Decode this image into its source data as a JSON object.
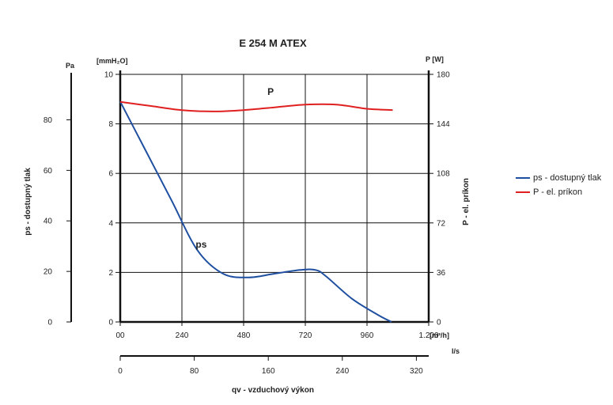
{
  "chart_data": {
    "type": "line",
    "title": "E 254 M ATEX",
    "x_primary": {
      "unit": "[m³/h]",
      "ticks": [
        "00",
        "240",
        "480",
        "720",
        "960",
        "1.200"
      ],
      "tick_values": [
        0,
        240,
        480,
        720,
        960,
        1200
      ],
      "range": [
        0,
        1200
      ]
    },
    "x_secondary": {
      "unit": "l/s",
      "label": "qv - vzduchový výkon",
      "ticks": [
        "0",
        "80",
        "160",
        "240",
        "320"
      ],
      "tick_values": [
        0,
        80,
        160,
        240,
        320
      ]
    },
    "y_left_mm": {
      "unit": "[mmH₂O]",
      "ticks": [
        "0",
        "2",
        "4",
        "6",
        "8",
        "10"
      ],
      "range": [
        0,
        10
      ]
    },
    "y_left_pa": {
      "unit": "Pa",
      "label": "ps - dostupný tlak",
      "ticks": [
        "0",
        "20",
        "40",
        "60",
        "80"
      ],
      "tick_values": [
        0,
        20,
        40,
        60,
        80
      ],
      "range": [
        0,
        98
      ]
    },
    "y_right": {
      "unit": "P [W]",
      "label": "P - el. príkon",
      "ticks": [
        "0",
        "36",
        "72",
        "108",
        "144",
        "180"
      ],
      "range": [
        0,
        180
      ]
    },
    "grid": true,
    "legend_position": "right",
    "series": [
      {
        "name": "ps - dostupný tlak",
        "color": "#1f4fa0",
        "axis": "left_mm",
        "curve_label": "ps",
        "x": [
          0,
          100,
          200,
          300,
          400,
          500,
          600,
          700,
          760,
          800,
          900,
          1000,
          1055
        ],
        "y": [
          8.9,
          6.9,
          4.9,
          2.9,
          1.95,
          1.8,
          1.95,
          2.1,
          2.1,
          1.85,
          0.95,
          0.3,
          0.0
        ]
      },
      {
        "name": "P - el. príkon",
        "color": "#e02020",
        "axis": "right",
        "curve_label": "P",
        "x": [
          0,
          120,
          240,
          360,
          480,
          600,
          720,
          840,
          960,
          1060
        ],
        "y": [
          160,
          157,
          154,
          153,
          154,
          156,
          158,
          158,
          155,
          154
        ]
      }
    ]
  }
}
